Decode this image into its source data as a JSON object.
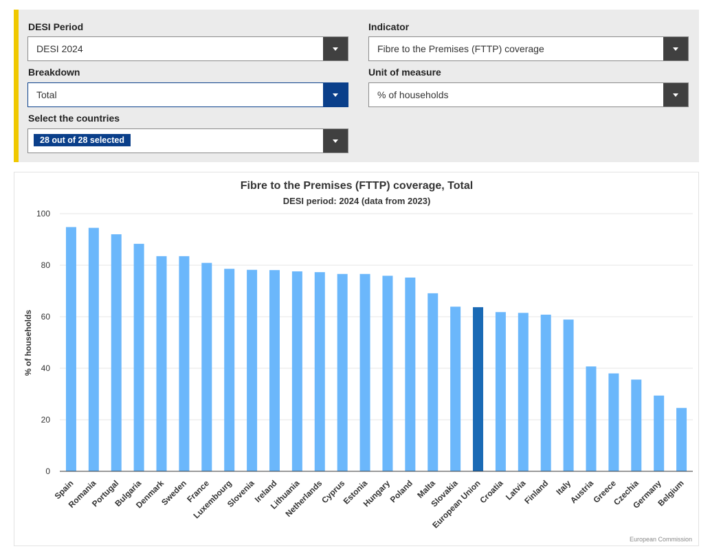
{
  "filters": {
    "period": {
      "label": "DESI Period",
      "value": "DESI 2024"
    },
    "indicator": {
      "label": "Indicator",
      "value": "Fibre to the Premises (FTTP) coverage"
    },
    "breakdown": {
      "label": "Breakdown",
      "value": "Total"
    },
    "unit": {
      "label": "Unit of measure",
      "value": "% of households"
    },
    "countries": {
      "label": "Select the countries",
      "value": "28 out of 28 selected"
    }
  },
  "chart_data": {
    "type": "bar",
    "title": "Fibre to the Premises (FTTP) coverage, Total",
    "subtitle": "DESI period: 2024 (data from 2023)",
    "ylabel": "% of households",
    "xlabel": "",
    "ylim": [
      0,
      100
    ],
    "yticks": [
      0,
      20,
      40,
      60,
      80,
      100
    ],
    "grid": true,
    "categories": [
      "Spain",
      "Romania",
      "Portugal",
      "Bulgaria",
      "Denmark",
      "Sweden",
      "France",
      "Luxembourg",
      "Slovenia",
      "Ireland",
      "Lithuania",
      "Netherlands",
      "Cyprus",
      "Estonia",
      "Hungary",
      "Poland",
      "Malta",
      "Slovakia",
      "European Union",
      "Croatia",
      "Latvia",
      "Finland",
      "Italy",
      "Austria",
      "Greece",
      "Czechia",
      "Germany",
      "Belgium"
    ],
    "values": [
      94.8,
      94.5,
      92.0,
      88.3,
      83.5,
      83.5,
      80.9,
      78.6,
      78.2,
      78.1,
      77.6,
      77.3,
      76.6,
      76.6,
      75.9,
      75.2,
      69.1,
      63.9,
      63.7,
      61.8,
      61.5,
      60.8,
      58.9,
      40.7,
      38.0,
      35.6,
      29.4,
      24.6
    ],
    "highlight": "European Union",
    "colors": {
      "bar": "#6bb7fb",
      "highlight": "#1a6ab5",
      "grid": "#e6e6e6",
      "axis": "#333333"
    },
    "credit": "European Commission"
  }
}
